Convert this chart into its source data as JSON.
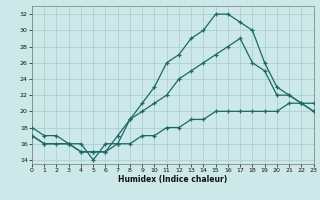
{
  "xlabel": "Humidex (Indice chaleur)",
  "bg_color": "#cde8e8",
  "grid_color": "#a8cccc",
  "line_color": "#1a6868",
  "line1_x": [
    0,
    1,
    2,
    3,
    4,
    5,
    6,
    7,
    8,
    9,
    10,
    11,
    12,
    13,
    14,
    15,
    16,
    17,
    18,
    19,
    20,
    21,
    22,
    23
  ],
  "line1_y": [
    18,
    17,
    17,
    16,
    16,
    14,
    16,
    16,
    19,
    21,
    23,
    26,
    27,
    29,
    30,
    32,
    32,
    31,
    30,
    26,
    23,
    22,
    21,
    20
  ],
  "line2_x": [
    0,
    1,
    3,
    4,
    5,
    6,
    7,
    8,
    9,
    10,
    11,
    12,
    13,
    14,
    15,
    16,
    17,
    18,
    19,
    20,
    21,
    22,
    23
  ],
  "line2_y": [
    17,
    16,
    16,
    15,
    15,
    15,
    17,
    19,
    20,
    21,
    22,
    24,
    25,
    26,
    27,
    28,
    29,
    26,
    25,
    22,
    22,
    21,
    20
  ],
  "line3_x": [
    0,
    1,
    2,
    3,
    4,
    5,
    6,
    7,
    8,
    9,
    10,
    11,
    12,
    13,
    14,
    15,
    16,
    17,
    18,
    19,
    20,
    21,
    22,
    23
  ],
  "line3_y": [
    17,
    16,
    16,
    16,
    15,
    15,
    15,
    16,
    16,
    17,
    17,
    18,
    18,
    19,
    19,
    20,
    20,
    20,
    20,
    20,
    20,
    21,
    21,
    21
  ],
  "xlim": [
    0,
    23
  ],
  "ylim": [
    13.5,
    33
  ],
  "yticks": [
    14,
    16,
    18,
    20,
    22,
    24,
    26,
    28,
    30,
    32
  ],
  "xticks": [
    0,
    1,
    2,
    3,
    4,
    5,
    6,
    7,
    8,
    9,
    10,
    11,
    12,
    13,
    14,
    15,
    16,
    17,
    18,
    19,
    20,
    21,
    22,
    23
  ]
}
